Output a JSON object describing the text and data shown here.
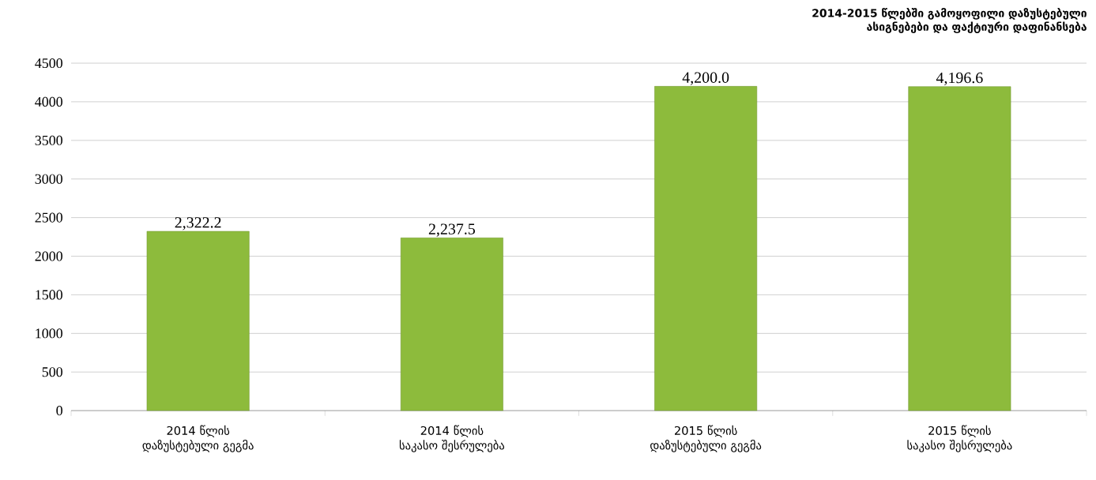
{
  "chart_data": {
    "type": "bar",
    "title": "2014-2015 წლებში გამოყოფილი დაზუსტებული ასიგნებები და ფაქტიური დაფინანსება",
    "categories": [
      "2014 წლის დაზუსტებული გეგმა",
      "2014 წლის საკასო შესრულება",
      "2015 წლის დაზუსტებული გეგმა",
      "2015 წლის საკასო შესრულება"
    ],
    "values": [
      2322.2,
      2237.5,
      4200.0,
      4196.6
    ],
    "value_labels": [
      "2,322.2",
      "2,237.5",
      "4,200.0",
      "4,196.6"
    ],
    "color": "#8dbb3c",
    "ylim": [
      0,
      4500
    ],
    "yticks": [
      0,
      500,
      1000,
      1500,
      2000,
      2500,
      3000,
      3500,
      4000,
      4500
    ],
    "grid": "y"
  }
}
